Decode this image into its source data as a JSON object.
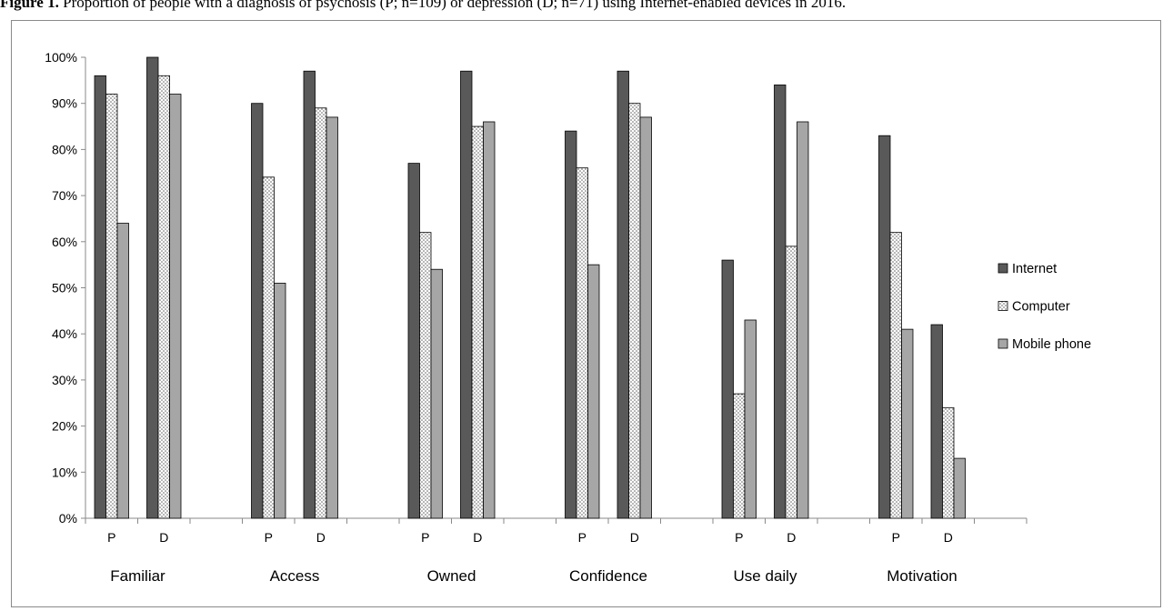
{
  "caption": {
    "label": "Figure 1.",
    "text": "Proportion of people with a diagnosis of psychosis (P; n=109) or depression (D; n=71) using Internet-enabled devices in 2016."
  },
  "chart_data": {
    "type": "bar",
    "title": "",
    "xlabel": "",
    "ylabel": "",
    "ylim": [
      0,
      100
    ],
    "y_ticks": [
      "0%",
      "10%",
      "20%",
      "30%",
      "40%",
      "50%",
      "60%",
      "70%",
      "80%",
      "90%",
      "100%"
    ],
    "grid": false,
    "legend_position": "right",
    "groups": [
      "Familiar",
      "Access",
      "Owned",
      "Confidence",
      "Use daily",
      "Motivation"
    ],
    "subgroups": [
      "P",
      "D"
    ],
    "series": [
      {
        "name": "Internet",
        "color": "#595959",
        "pattern": "solid",
        "values": [
          96,
          100,
          90,
          97,
          77,
          97,
          84,
          97,
          56,
          94,
          83,
          42
        ]
      },
      {
        "name": "Computer",
        "color": "#ffffff",
        "pattern": "dots",
        "values": [
          92,
          96,
          74,
          89,
          62,
          85,
          76,
          90,
          27,
          59,
          62,
          24
        ]
      },
      {
        "name": "Mobile phone",
        "color": "#a6a6a6",
        "pattern": "solid",
        "values": [
          64,
          92,
          51,
          87,
          54,
          86,
          55,
          87,
          43,
          86,
          41,
          13
        ]
      }
    ]
  }
}
